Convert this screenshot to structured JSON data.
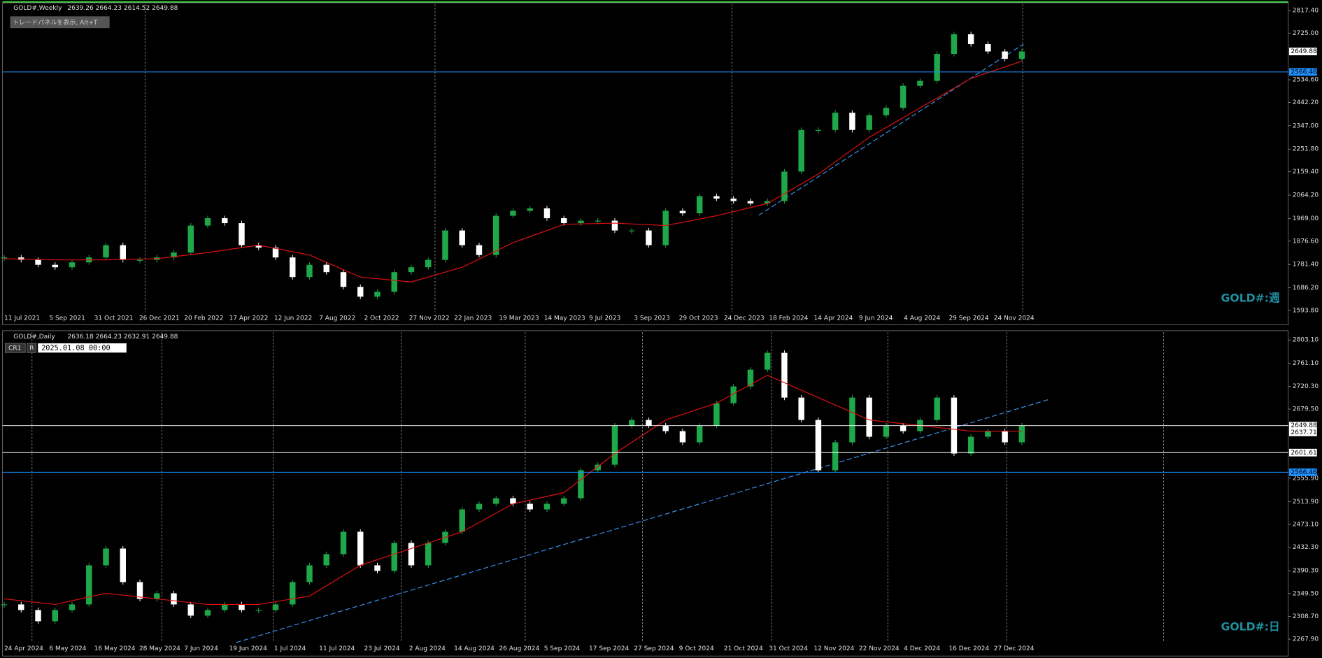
{
  "toolbar": {
    "trade_panel": "トレードパネルを表示, Alt+T",
    "cr": "CR1",
    "r": "R",
    "crosshair_time": "2025.01.08 00:00"
  },
  "panels": [
    {
      "title": "GOLD#,Weekly",
      "ohlc": "2639.26 2664.23 2614.52 2649.88",
      "watermark": "GOLD#:週",
      "ylim": [
        1593.8,
        2817.4
      ],
      "yticks": [
        {
          "value": 2817.4,
          "label": "2817.40"
        },
        {
          "value": 2725,
          "label": "2725.00"
        },
        {
          "value": 2534.6,
          "label": "2534.60"
        },
        {
          "value": 2442.2,
          "label": "2442.20"
        },
        {
          "value": 2347,
          "label": "2347.00"
        },
        {
          "value": 2251.8,
          "label": "2251.80"
        },
        {
          "value": 2159.4,
          "label": "2159.40"
        },
        {
          "value": 2064.2,
          "label": "2064.20"
        },
        {
          "value": 1969,
          "label": "1969.00"
        },
        {
          "value": 1876.6,
          "label": "1876.60"
        },
        {
          "value": 1781.4,
          "label": "1781.40"
        },
        {
          "value": 1686.2,
          "label": "1686.20"
        },
        {
          "value": 1593.8,
          "label": "1593.80"
        }
      ],
      "price_tags": [
        {
          "value": 2649.88,
          "label": "2649.88",
          "color": "#ffffff",
          "line": false
        },
        {
          "value": 2566.46,
          "label": "2566.46",
          "color": "#1e90ff",
          "line": true
        }
      ],
      "dates": [
        "11 Jul 2021",
        "5 Sep 2021",
        "31 Oct 2021",
        "26 Dec 2021",
        "20 Feb 2022",
        "17 Apr 2022",
        "12 Jun 2022",
        "7 Aug 2022",
        "2 Oct 2022",
        "27 Nov 2022",
        "22 Jan 2023",
        "19 Mar 2023",
        "14 May 2023",
        "9 Jul 2023",
        "3 Sep 2023",
        "29 Oct 2023",
        "24 Dec 2023",
        "18 Feb 2024",
        "14 Apr 2024",
        "9 Jun 2024",
        "4 Aug 2024",
        "29 Sep 2024",
        "24 Nov 2024"
      ],
      "close": [
        1810,
        1800,
        1780,
        1770,
        1790,
        1810,
        1860,
        1800,
        1800,
        1810,
        1830,
        1940,
        1970,
        1950,
        1860,
        1850,
        1810,
        1730,
        1780,
        1750,
        1690,
        1650,
        1670,
        1750,
        1770,
        1800,
        1920,
        1860,
        1820,
        1980,
        2000,
        2010,
        1970,
        1950,
        1960,
        1960,
        1920,
        1920,
        1860,
        2000,
        1990,
        2060,
        2050,
        2040,
        2030,
        2040,
        2160,
        2330,
        2330,
        2400,
        2330,
        2390,
        2420,
        2510,
        2530,
        2640,
        2720,
        2680,
        2650,
        2620,
        2650
      ],
      "ma": [
        1805,
        1800,
        1800,
        1805,
        1830,
        1860,
        1820,
        1730,
        1710,
        1770,
        1870,
        1945,
        1950,
        1940,
        1980,
        2030,
        2150,
        2300,
        2420,
        2540,
        2610
      ]
    },
    {
      "title": "GOLD#,Daily",
      "ohlc": "2636.18 2664.23 2632.91 2649.88",
      "watermark": "GOLD#:日",
      "ylim": [
        2267.9,
        2803.1
      ],
      "yticks": [
        {
          "value": 2803.1,
          "label": "2803.10"
        },
        {
          "value": 2761.1,
          "label": "2761.10"
        },
        {
          "value": 2720.3,
          "label": "2720.30"
        },
        {
          "value": 2679.5,
          "label": "2679.50"
        },
        {
          "value": 2555.9,
          "label": "2555.90"
        },
        {
          "value": 2513.9,
          "label": "2513.90"
        },
        {
          "value": 2473.1,
          "label": "2473.10"
        },
        {
          "value": 2432.3,
          "label": "2432.30"
        },
        {
          "value": 2390.3,
          "label": "2390.30"
        },
        {
          "value": 2349.5,
          "label": "2349.50"
        },
        {
          "value": 2308.7,
          "label": "2308.70"
        },
        {
          "value": 2267.9,
          "label": "2267.90"
        }
      ],
      "price_tags": [
        {
          "value": 2649.88,
          "label": "2649.88",
          "color": "#ffffff",
          "line": true
        },
        {
          "value": 2637.71,
          "label": "2637.71",
          "color": "#ffffff",
          "line": false
        },
        {
          "value": 2601.61,
          "label": "2601.61",
          "color": "#ffffff",
          "line": true
        },
        {
          "value": 2566.46,
          "label": "2566.46",
          "color": "#1e90ff",
          "line": true
        }
      ],
      "dates": [
        "24 Apr 2024",
        "6 May 2024",
        "16 May 2024",
        "28 May 2024",
        "7 Jun 2024",
        "19 Jun 2024",
        "1 Jul 2024",
        "11 Jul 2024",
        "23 Jul 2024",
        "2 Aug 2024",
        "14 Aug 2024",
        "26 Aug 2024",
        "5 Sep 2024",
        "17 Sep 2024",
        "27 Sep 2024",
        "9 Oct 2024",
        "21 Oct 2024",
        "31 Oct 2024",
        "12 Nov 2024",
        "22 Nov 2024",
        "4 Dec 2024",
        "16 Dec 2024",
        "27 Dec 2024"
      ],
      "close": [
        2330,
        2320,
        2300,
        2320,
        2330,
        2400,
        2430,
        2370,
        2340,
        2350,
        2330,
        2310,
        2320,
        2330,
        2320,
        2320,
        2330,
        2370,
        2400,
        2420,
        2460,
        2400,
        2390,
        2440,
        2400,
        2440,
        2460,
        2500,
        2510,
        2520,
        2510,
        2500,
        2510,
        2520,
        2570,
        2580,
        2650,
        2660,
        2650,
        2640,
        2620,
        2650,
        2690,
        2720,
        2750,
        2780,
        2700,
        2660,
        2570,
        2620,
        2700,
        2630,
        2650,
        2640,
        2660,
        2700,
        2600,
        2630,
        2640,
        2620,
        2650
      ],
      "ma": [
        2340,
        2330,
        2350,
        2340,
        2330,
        2330,
        2345,
        2400,
        2430,
        2460,
        2510,
        2530,
        2600,
        2660,
        2690,
        2740,
        2700,
        2660,
        2650,
        2640,
        2640
      ]
    }
  ]
}
